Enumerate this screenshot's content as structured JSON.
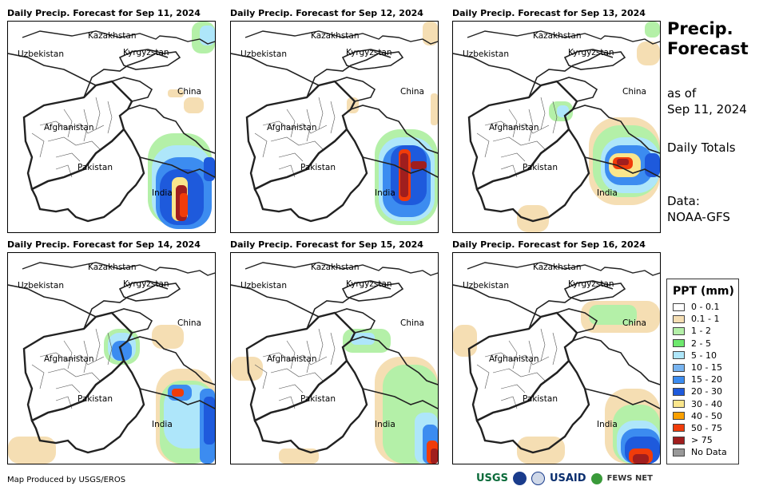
{
  "panels": [
    {
      "title": "Daily Precip. Forecast for Sep 11, 2024"
    },
    {
      "title": "Daily Precip. Forecast for Sep 12, 2024"
    },
    {
      "title": "Daily Precip. Forecast for Sep 13, 2024"
    },
    {
      "title": "Daily Precip. Forecast for Sep 14, 2024"
    },
    {
      "title": "Daily Precip. Forecast for Sep 15, 2024"
    },
    {
      "title": "Daily Precip. Forecast for Sep 16, 2024"
    }
  ],
  "map_labels": {
    "kazakhstan": "Kazakhstan",
    "uzbekistan": "Uzbekistan",
    "kyrgyzstan": "Kyrgyzstan",
    "china": "China",
    "afghanistan": "Afghanistan",
    "pakistan": "Pakistan",
    "india": "India"
  },
  "sidebar": {
    "title_line1": "Precip.",
    "title_line2": "Forecast",
    "as_of_line1": "as of",
    "as_of_line2": "Sep 11, 2024",
    "totals": "Daily Totals",
    "data_line1": "Data:",
    "data_line2": "NOAA-GFS"
  },
  "legend": {
    "title": "PPT (mm)",
    "items": [
      {
        "label": "0 - 0.1",
        "color": "#ffffff"
      },
      {
        "label": "0.1 - 1",
        "color": "#f5deb3"
      },
      {
        "label": "1 - 2",
        "color": "#b4f0a8"
      },
      {
        "label": "2 - 5",
        "color": "#6ee86e"
      },
      {
        "label": "5 - 10",
        "color": "#aee6fa"
      },
      {
        "label": "10 - 15",
        "color": "#78b4f0"
      },
      {
        "label": "15 - 20",
        "color": "#3c8cf0"
      },
      {
        "label": "20 - 30",
        "color": "#1e5adc"
      },
      {
        "label": "30 - 40",
        "color": "#fae68c"
      },
      {
        "label": "40 - 50",
        "color": "#faa000"
      },
      {
        "label": "50 - 75",
        "color": "#f03c0a"
      },
      {
        "label": "> 75",
        "color": "#a01e1e"
      },
      {
        "label": "No Data",
        "color": "#999999"
      }
    ]
  },
  "footer": {
    "credit": "Map Produced by USGS/EROS"
  },
  "logos": {
    "usgs": "USGS",
    "usaid": "USAID",
    "fews": "FEWS NET"
  }
}
